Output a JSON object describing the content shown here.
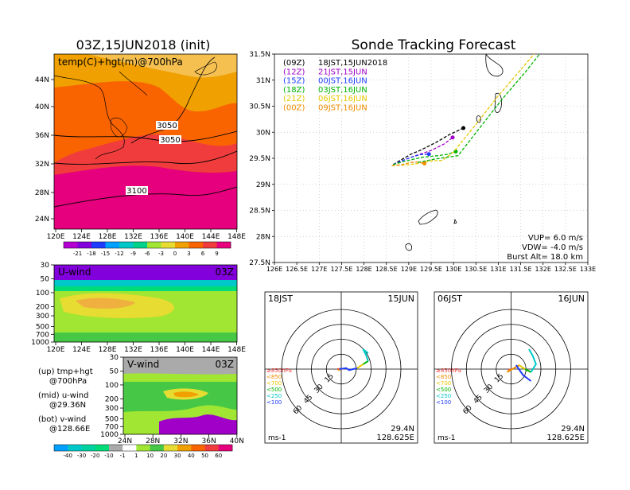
{
  "title_left": "03Z,15JUN2018 (init)",
  "title_right": "Sonde Tracking Forecast",
  "map_panel": {
    "label": "temp(C)+hgt(m)@700hPa",
    "lat_ticks": [
      "44N",
      "40N",
      "36N",
      "32N",
      "28N",
      "24N"
    ],
    "lon_ticks": [
      "120E",
      "124E",
      "128E",
      "132E",
      "136E",
      "140E",
      "144E",
      "148E"
    ],
    "contour_labels": [
      "3050",
      "3050",
      "3100"
    ],
    "colorbar_labels": [
      "-21",
      "-18",
      "-15",
      "-12",
      "-9",
      "-6",
      "-3",
      "0",
      "3",
      "6",
      "9"
    ],
    "colorbar_colors": [
      "#b400d2",
      "#8200dc",
      "#1e3cff",
      "#00a0ff",
      "#00c8c8",
      "#00d28c",
      "#a0e632",
      "#e6dc32",
      "#f0a000",
      "#fa6400",
      "#f03c3c",
      "#e6007d"
    ]
  },
  "uwind_panel": {
    "label": "U-wind",
    "time": "03Z",
    "p_ticks": [
      "30",
      "50",
      "100",
      "200",
      "300",
      "500",
      "700",
      "1000"
    ],
    "lon_ticks": [
      "120E",
      "124E",
      "128E",
      "132E",
      "136E",
      "140E",
      "144E",
      "148E"
    ]
  },
  "vwind_panel": {
    "label": "V-wind",
    "time": "03Z",
    "p_ticks": [
      "30",
      "50",
      "100",
      "200",
      "300",
      "500",
      "700",
      "1000"
    ],
    "lat_ticks": [
      "24N",
      "28N",
      "32N",
      "36N",
      "40N"
    ]
  },
  "notes": [
    {
      "line1": "(up) tmp+hgt",
      "line2": "@700hPa"
    },
    {
      "line1": "(mid) u-wind",
      "line2": "@29.36N"
    },
    {
      "line1": "(bot) v-wind",
      "line2": "@128.66E"
    }
  ],
  "wind_colorbar": {
    "labels": [
      "-40",
      "-30",
      "-20",
      "-10",
      "-1",
      "1",
      "10",
      "20",
      "30",
      "40",
      "50",
      "60"
    ],
    "colors": [
      "#00a0ff",
      "#00c8c8",
      "#00d2a0",
      "#00dc78",
      "#aaaaaa",
      "#ffffff",
      "#a0e632",
      "#46c846",
      "#e6dc32",
      "#f0a000",
      "#fa6400",
      "#f03c3c",
      "#e6007d"
    ]
  },
  "legend": [
    {
      "code": "(09Z)",
      "text": "18JST,15JUN2018",
      "color": "#000000"
    },
    {
      "code": "(12Z)",
      "text": "21JST,15JUN",
      "color": "#a000c8"
    },
    {
      "code": "(15Z)",
      "text": "00JST,16JUN",
      "color": "#1e3cff"
    },
    {
      "code": "(18Z)",
      "text": "03JST,16JUN",
      "color": "#00b400"
    },
    {
      "code": "(21Z)",
      "text": "06JST,16JUN",
      "color": "#e6c800"
    },
    {
      "code": "(00Z)",
      "text": "09JST,16JUN",
      "color": "#f08c00"
    }
  ],
  "track_panel": {
    "lat_ticks": [
      "31.5N",
      "31N",
      "30.5N",
      "30N",
      "29.5N",
      "29N",
      "28.5N",
      "28N",
      "27.5N"
    ],
    "lon_ticks": [
      "126E",
      "126.5E",
      "127E",
      "127.5E",
      "128E",
      "128.5E",
      "129E",
      "129.5E",
      "130E",
      "130.5E",
      "131E",
      "131.5E",
      "132E",
      "132.5E",
      "133E"
    ],
    "vup": "VUP= 6.0 m/s",
    "vdw": "VDW= -4.0 m/s",
    "burst": "Burst Alt= 18.0 km"
  },
  "chart_data": {
    "type": "line",
    "title": "Sonde Tracking Forecast",
    "xlim": [
      126,
      133
    ],
    "ylim": [
      27.5,
      31.5
    ],
    "series": [
      {
        "name": "18JST,15JUN2018",
        "color": "#000000",
        "points": [
          [
            128.65,
            29.38
          ],
          [
            128.85,
            29.48
          ],
          [
            129.05,
            29.58
          ],
          [
            129.25,
            29.65
          ],
          [
            129.6,
            29.8
          ],
          [
            129.9,
            29.95
          ],
          [
            130.22,
            30.08
          ]
        ]
      },
      {
        "name": "21JST,15JUN",
        "color": "#a000c8",
        "points": [
          [
            128.65,
            29.38
          ],
          [
            128.9,
            29.47
          ],
          [
            129.15,
            29.55
          ],
          [
            129.5,
            29.65
          ],
          [
            129.8,
            29.78
          ],
          [
            129.98,
            29.9
          ]
        ]
      },
      {
        "name": "00JST,16JUN",
        "color": "#1e3cff",
        "points": [
          [
            128.65,
            29.38
          ],
          [
            128.85,
            29.45
          ],
          [
            129.05,
            29.52
          ],
          [
            129.25,
            29.57
          ],
          [
            129.45,
            29.58
          ]
        ]
      },
      {
        "name": "03JST,16JUN",
        "color": "#00b400",
        "points": [
          [
            128.65,
            29.38
          ],
          [
            128.85,
            29.43
          ],
          [
            129.1,
            29.48
          ],
          [
            129.3,
            29.52
          ],
          [
            129.65,
            29.55
          ],
          [
            129.88,
            29.58
          ],
          [
            130.05,
            29.63
          ]
        ]
      },
      {
        "name": "06JST,16JUN",
        "color": "#e6c800",
        "points": [
          [
            128.62,
            29.36
          ],
          [
            128.9,
            29.37
          ],
          [
            129.2,
            29.4
          ],
          [
            129.5,
            29.45
          ],
          [
            129.75,
            29.46
          ],
          [
            130.0,
            29.62
          ],
          [
            130.5,
            30.15
          ],
          [
            131.0,
            30.7
          ],
          [
            131.5,
            31.2
          ],
          [
            132.1,
            31.8
          ]
        ]
      },
      {
        "name": "09JST,16JUN",
        "color": "#f08c00",
        "points": [
          [
            128.62,
            29.36
          ],
          [
            128.85,
            29.38
          ],
          [
            129.05,
            29.42
          ],
          [
            129.2,
            29.43
          ],
          [
            129.35,
            29.4
          ]
        ]
      },
      {
        "name": "",
        "color": "#00b400",
        "points": [
          [
            129.2,
            29.42
          ],
          [
            129.55,
            29.48
          ],
          [
            129.85,
            29.52
          ],
          [
            130.1,
            29.55
          ],
          [
            130.6,
            30.1
          ],
          [
            131.1,
            30.65
          ],
          [
            131.6,
            31.15
          ],
          [
            132.2,
            31.8
          ]
        ]
      }
    ]
  },
  "hodographs": [
    {
      "time": "18JST",
      "date": "15JUN",
      "lat": "29.4N",
      "lon": "128.625E",
      "unit": "ms-1",
      "ring_labels": [
        "15",
        "30",
        "45",
        "60"
      ],
      "levels": [
        {
          "label": "≥850hPa",
          "color": "#f03c3c"
        },
        {
          "label": "<850",
          "color": "#f08c00"
        },
        {
          "label": "<700",
          "color": "#e6c800"
        },
        {
          "label": "<500",
          "color": "#00b400"
        },
        {
          "label": "<250",
          "color": "#00c8c8"
        },
        {
          "label": "<100",
          "color": "#1e3cff"
        }
      ],
      "segments": [
        {
          "color": "#f03c3c",
          "points": [
            [
              -4,
              0
            ],
            [
              0,
              0
            ]
          ]
        },
        {
          "color": "#f08c00",
          "points": [
            [
              0,
              0
            ],
            [
              -3,
              -1
            ],
            [
              -1,
              1
            ]
          ]
        },
        {
          "color": "#1e3cff",
          "points": [
            [
              -2,
              0
            ],
            [
              5,
              1
            ],
            [
              8,
              -1
            ],
            [
              12,
              0
            ],
            [
              16,
              1
            ]
          ]
        },
        {
          "color": "#e6c800",
          "points": [
            [
              16,
              1
            ],
            [
              22,
              5
            ]
          ]
        },
        {
          "color": "#00b400",
          "points": [
            [
              22,
              5
            ],
            [
              27,
              8
            ]
          ]
        },
        {
          "color": "#00c8c8",
          "points": [
            [
              27,
              8
            ],
            [
              25,
              14
            ],
            [
              22,
              20
            ],
            [
              27,
              16
            ]
          ]
        }
      ]
    },
    {
      "time": "06JST",
      "date": "16JUN",
      "lat": "29.4N",
      "lon": "128.625E",
      "unit": "ms-1",
      "ring_labels": [
        "15",
        "30",
        "45",
        "60"
      ],
      "levels": [
        {
          "label": "≥850hPa",
          "color": "#f03c3c"
        },
        {
          "label": "<850",
          "color": "#f08c00"
        },
        {
          "label": "<700",
          "color": "#e6c800"
        },
        {
          "label": "<500",
          "color": "#00b400"
        },
        {
          "label": "<250",
          "color": "#00c8c8"
        },
        {
          "label": "<100",
          "color": "#1e3cff"
        }
      ],
      "segments": [
        {
          "color": "#f03c3c",
          "points": [
            [
              -3,
              -1
            ],
            [
              0,
              0
            ]
          ]
        },
        {
          "color": "#f08c00",
          "points": [
            [
              0,
              0
            ],
            [
              -4,
              -3
            ],
            [
              3,
              1
            ],
            [
              8,
              4
            ]
          ]
        },
        {
          "color": "#e6c800",
          "points": [
            [
              8,
              4
            ],
            [
              14,
              0
            ]
          ]
        },
        {
          "color": "#00b400",
          "points": [
            [
              14,
              0
            ],
            [
              20,
              -3
            ]
          ]
        },
        {
          "color": "#1e3cff",
          "points": [
            [
              5,
              4
            ],
            [
              12,
              -6
            ],
            [
              20,
              -12
            ]
          ]
        },
        {
          "color": "#00c8c8",
          "points": [
            [
              20,
              -3
            ],
            [
              25,
              5
            ],
            [
              22,
              13
            ],
            [
              18,
              20
            ]
          ]
        }
      ]
    }
  ]
}
